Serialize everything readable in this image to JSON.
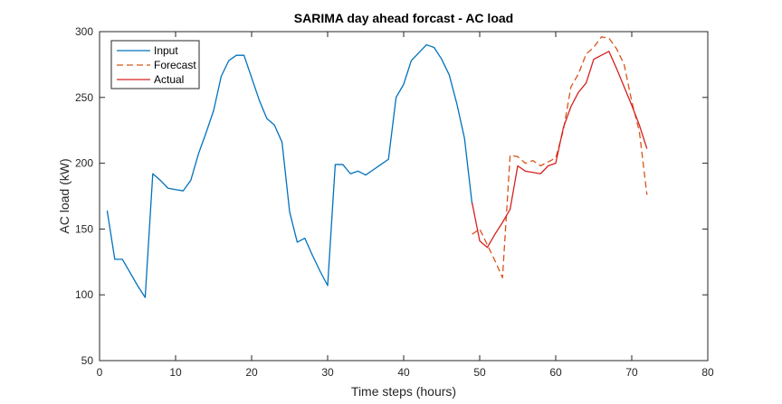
{
  "chart_data": {
    "type": "line",
    "title": "SARIMA day ahead forcast - AC load",
    "xlabel": "Time steps (hours)",
    "ylabel": "AC load (kW)",
    "xlim": [
      0,
      80
    ],
    "ylim": [
      50,
      300
    ],
    "xticks": [
      0,
      10,
      20,
      30,
      40,
      50,
      60,
      70,
      80
    ],
    "yticks": [
      50,
      100,
      150,
      200,
      250,
      300
    ],
    "grid": false,
    "legend_position": "top-left",
    "series": [
      {
        "name": "Input",
        "color": "#0072BD",
        "style": "solid",
        "x": [
          1,
          2,
          3,
          4,
          5,
          6,
          7,
          8,
          9,
          10,
          11,
          12,
          13,
          14,
          15,
          16,
          17,
          18,
          19,
          20,
          21,
          22,
          23,
          24,
          25,
          26,
          27,
          28,
          29,
          30,
          31,
          32,
          33,
          34,
          35,
          36,
          37,
          38,
          39,
          40,
          41,
          42,
          43,
          44,
          45,
          46,
          47,
          48,
          49
        ],
        "y": [
          164,
          127,
          127,
          117,
          107,
          98,
          192,
          187,
          181,
          180,
          179,
          187,
          207,
          223,
          240,
          266,
          278,
          282,
          282,
          265,
          248,
          234,
          229,
          216,
          163,
          140,
          143,
          130,
          118,
          107,
          199,
          199,
          192,
          194,
          191,
          195,
          199,
          203,
          250,
          260,
          278,
          284,
          290,
          288,
          279,
          267,
          245,
          219,
          169
        ]
      },
      {
        "name": "Forecast",
        "color": "#D95319",
        "style": "dashed",
        "x": [
          49,
          50,
          51,
          52,
          53,
          54,
          55,
          56,
          57,
          58,
          59,
          60,
          61,
          62,
          63,
          64,
          65,
          66,
          67,
          68,
          69,
          70,
          71,
          72
        ],
        "y": [
          146,
          150,
          138,
          126,
          113,
          206,
          205,
          200,
          202,
          198,
          201,
          204,
          225,
          258,
          268,
          283,
          288,
          296,
          295,
          287,
          275,
          247,
          224,
          176
        ]
      },
      {
        "name": "Actual",
        "color": "#D62020",
        "style": "solid",
        "x": [
          49,
          50,
          51,
          52,
          53,
          54,
          55,
          56,
          57,
          58,
          59,
          60,
          61,
          62,
          63,
          64,
          65,
          66,
          67,
          68,
          69,
          70,
          71,
          72
        ],
        "y": [
          170,
          141,
          136,
          146,
          155,
          165,
          198,
          194,
          193,
          192,
          198,
          200,
          227,
          243,
          254,
          261,
          279,
          282,
          285,
          272,
          258,
          244,
          229,
          211
        ]
      }
    ]
  }
}
